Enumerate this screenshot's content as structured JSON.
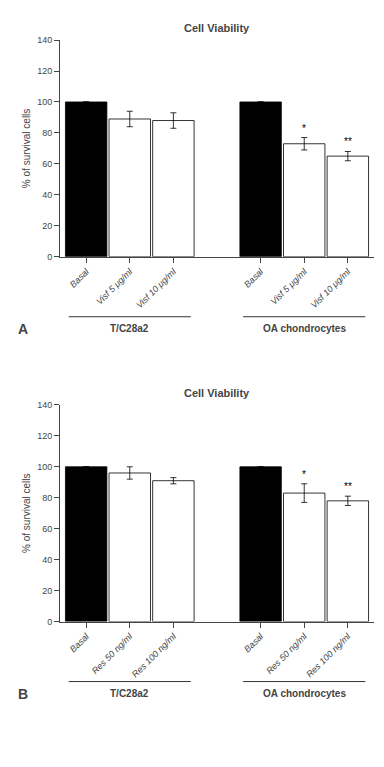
{
  "chart_data": [
    {
      "type": "bar",
      "title": "Cell Viability",
      "ylabel": "% of survival cells",
      "panel_label": "A",
      "groups": [
        "T/C28a2",
        "OA chondrocytes"
      ],
      "categories": [
        "Basal",
        "Visf 5 μg/ml",
        "Visf 10 μg/ml"
      ],
      "values": [
        [
          100,
          89,
          88
        ],
        [
          100,
          73,
          65
        ]
      ],
      "errors": [
        [
          0,
          5,
          5
        ],
        [
          0,
          4,
          3
        ]
      ],
      "colors": [
        "#000000",
        "#ffffff",
        "#ffffff"
      ],
      "annotations": [
        {
          "group": "OA chondrocytes",
          "category": "Visf 5 μg/ml",
          "text": "*"
        },
        {
          "group": "OA chondrocytes",
          "category": "Visf 10 μg/ml",
          "text": "**"
        }
      ],
      "ylim": [
        0,
        140
      ],
      "yticks": [
        0,
        20,
        40,
        60,
        80,
        100,
        120,
        140
      ],
      "grid": false
    },
    {
      "type": "bar",
      "title": "Cell Viability",
      "ylabel": "% of survival cells",
      "panel_label": "B",
      "groups": [
        "T/C28a2",
        "OA chondrocytes"
      ],
      "categories": [
        "Basal",
        "Res 50 ng/ml",
        "Res 100 ng/ml"
      ],
      "values": [
        [
          100,
          96,
          91
        ],
        [
          100,
          83,
          78
        ]
      ],
      "errors": [
        [
          0,
          4,
          2
        ],
        [
          0,
          6,
          3
        ]
      ],
      "colors": [
        "#000000",
        "#ffffff",
        "#ffffff"
      ],
      "annotations": [
        {
          "group": "OA chondrocytes",
          "category": "Res 50 ng/ml",
          "text": "*"
        },
        {
          "group": "OA chondrocytes",
          "category": "Res 100 ng/ml",
          "text": "**"
        }
      ],
      "ylim": [
        0,
        140
      ],
      "yticks": [
        0,
        20,
        40,
        60,
        80,
        100,
        120,
        140
      ],
      "grid": false
    }
  ]
}
